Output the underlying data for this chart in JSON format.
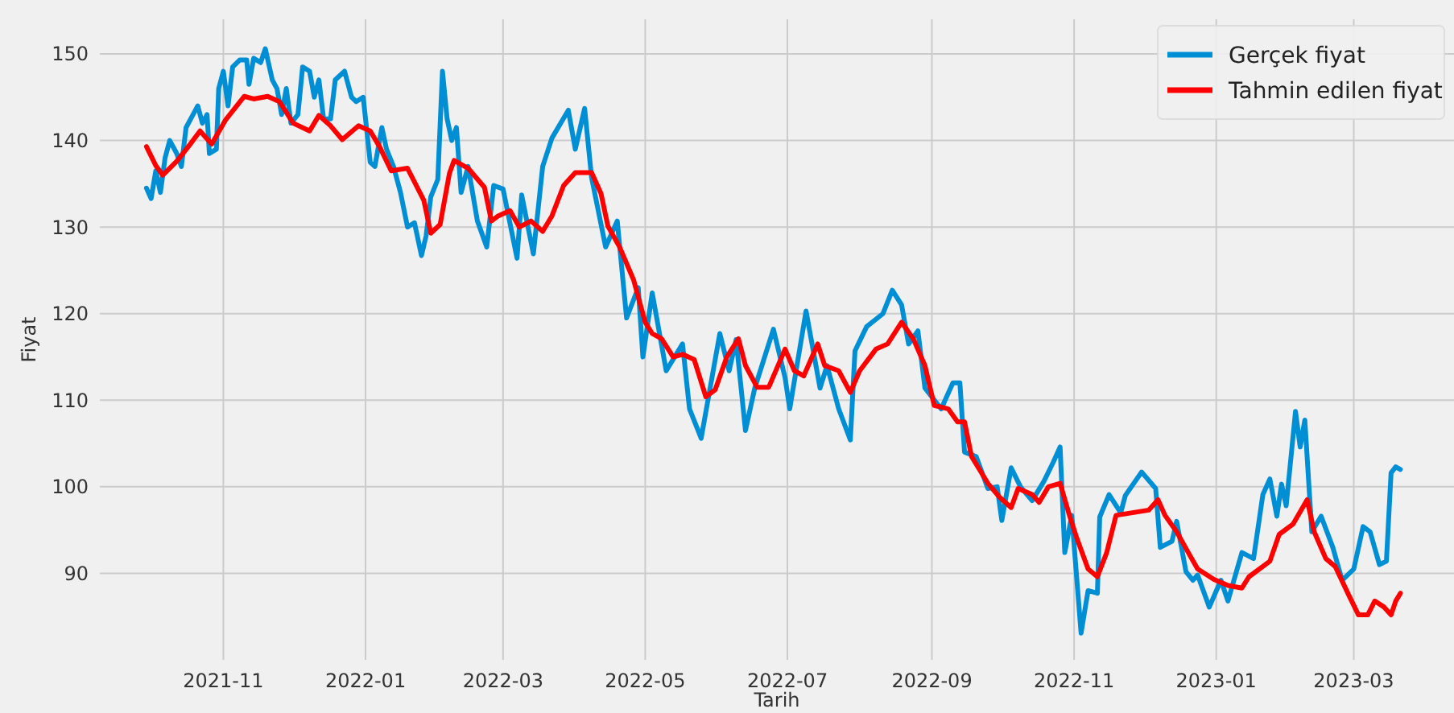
{
  "chart_data": {
    "type": "line",
    "xlabel": "Tarih",
    "ylabel": "Fiyat",
    "legend": "top right",
    "grid": true,
    "xlim": [
      "2021-09-09",
      "2023-04-13"
    ],
    "ylim": [
      80,
      154
    ],
    "xticks": [
      {
        "value": "2021-11-01",
        "label": "2021-11"
      },
      {
        "value": "2022-01-01",
        "label": "2022-01"
      },
      {
        "value": "2022-03-01",
        "label": "2022-03"
      },
      {
        "value": "2022-05-01",
        "label": "2022-05"
      },
      {
        "value": "2022-07-01",
        "label": "2022-07"
      },
      {
        "value": "2022-09-01",
        "label": "2022-09"
      },
      {
        "value": "2022-11-01",
        "label": "2022-11"
      },
      {
        "value": "2023-01-01",
        "label": "2023-01"
      },
      {
        "value": "2023-03-01",
        "label": "2023-03"
      }
    ],
    "yticks": [
      90,
      100,
      110,
      120,
      130,
      140,
      150
    ],
    "series": [
      {
        "name": "Gerçek fiyat",
        "color": "#008fd5",
        "x": [
          "2021-09-29",
          "2021-10-01",
          "2021-10-03",
          "2021-10-05",
          "2021-10-07",
          "2021-10-09",
          "2021-10-12",
          "2021-10-14",
          "2021-10-16",
          "2021-10-19",
          "2021-10-21",
          "2021-10-23",
          "2021-10-25",
          "2021-10-26",
          "2021-10-29",
          "2021-10-30",
          "2021-11-01",
          "2021-11-03",
          "2021-11-05",
          "2021-11-08",
          "2021-11-11",
          "2021-11-12",
          "2021-11-14",
          "2021-11-17",
          "2021-11-19",
          "2021-11-22",
          "2021-11-24",
          "2021-11-26",
          "2021-11-28",
          "2021-11-30",
          "2021-12-03",
          "2021-12-05",
          "2021-12-08",
          "2021-12-10",
          "2021-12-12",
          "2021-12-14",
          "2021-12-17",
          "2021-12-19",
          "2021-12-23",
          "2021-12-26",
          "2021-12-28",
          "2021-12-31",
          "2022-01-03",
          "2022-01-05",
          "2022-01-08",
          "2022-01-10",
          "2022-01-13",
          "2022-01-16",
          "2022-01-19",
          "2022-01-22",
          "2022-01-25",
          "2022-01-27",
          "2022-01-29",
          "2022-02-01",
          "2022-02-03",
          "2022-02-05",
          "2022-02-07",
          "2022-02-09",
          "2022-02-11",
          "2022-02-14",
          "2022-02-18",
          "2022-02-22",
          "2022-02-25",
          "2022-03-01",
          "2022-03-07",
          "2022-03-09",
          "2022-03-14",
          "2022-03-18",
          "2022-03-22",
          "2022-03-29",
          "2022-04-01",
          "2022-04-05",
          "2022-04-08",
          "2022-04-14",
          "2022-04-19",
          "2022-04-23",
          "2022-04-28",
          "2022-04-30",
          "2022-05-04",
          "2022-05-10",
          "2022-05-17",
          "2022-05-20",
          "2022-05-25",
          "2022-06-02",
          "2022-06-06",
          "2022-06-09",
          "2022-06-13",
          "2022-06-17",
          "2022-06-25",
          "2022-06-30",
          "2022-07-02",
          "2022-07-09",
          "2022-07-15",
          "2022-07-18",
          "2022-07-23",
          "2022-07-28",
          "2022-07-30",
          "2022-08-04",
          "2022-08-11",
          "2022-08-15",
          "2022-08-19",
          "2022-08-22",
          "2022-08-26",
          "2022-08-29",
          "2022-09-05",
          "2022-09-10",
          "2022-09-13",
          "2022-09-15",
          "2022-09-20",
          "2022-09-25",
          "2022-09-29",
          "2022-10-01",
          "2022-10-05",
          "2022-10-09",
          "2022-10-14",
          "2022-10-19",
          "2022-10-23",
          "2022-10-26",
          "2022-10-28",
          "2022-10-31",
          "2022-11-04",
          "2022-11-07",
          "2022-11-11",
          "2022-11-12",
          "2022-11-16",
          "2022-11-21",
          "2022-11-23",
          "2022-11-30",
          "2022-12-06",
          "2022-12-08",
          "2022-12-13",
          "2022-12-15",
          "2022-12-19",
          "2022-12-22",
          "2022-12-24",
          "2022-12-29",
          "2023-01-03",
          "2023-01-06",
          "2023-01-12",
          "2023-01-17",
          "2023-01-21",
          "2023-01-24",
          "2023-01-27",
          "2023-01-29",
          "2023-01-31",
          "2023-02-04",
          "2023-02-06",
          "2023-02-08",
          "2023-02-11",
          "2023-02-15",
          "2023-02-20",
          "2023-02-24",
          "2023-03-01",
          "2023-03-05",
          "2023-03-08",
          "2023-03-12",
          "2023-03-15",
          "2023-03-17",
          "2023-03-19",
          "2023-03-21"
        ],
        "values": [
          134.5,
          133.3,
          136.5,
          134,
          138,
          140,
          138.5,
          137,
          141.5,
          143,
          144,
          142,
          143,
          138.5,
          139,
          146,
          148,
          144,
          148.5,
          149.3,
          149.3,
          146.5,
          149.5,
          149,
          150.6,
          147,
          146,
          143,
          146,
          142,
          143,
          148.5,
          148,
          145,
          147,
          142.5,
          142.5,
          147,
          148,
          145,
          144.5,
          145,
          137.5,
          137,
          141.5,
          139,
          137,
          134,
          130,
          130.5,
          126.7,
          129,
          133.5,
          135.5,
          148,
          142.5,
          140,
          141.5,
          134,
          137,
          130.7,
          127.7,
          134.8,
          134.4,
          126.4,
          133.7,
          126.9,
          137,
          140.3,
          143.5,
          139,
          143.7,
          135.7,
          127.7,
          130.7,
          119.5,
          123,
          115,
          122.4,
          113.4,
          116.5,
          109,
          105.6,
          117.7,
          113.4,
          117,
          106.5,
          111.4,
          118.2,
          112.6,
          109,
          120.3,
          111.4,
          114,
          109,
          105.4,
          115.7,
          118.5,
          120,
          122.7,
          121,
          116.5,
          118,
          111.4,
          109,
          112,
          112,
          104,
          103.5,
          99.8,
          100,
          96.1,
          102.2,
          100,
          98.4,
          100.6,
          102.8,
          104.6,
          92.4,
          96.7,
          83.1,
          88,
          87.7,
          96.5,
          99.1,
          97,
          99,
          101.7,
          99.8,
          93,
          93.7,
          96,
          90.2,
          89.2,
          89.8,
          86.1,
          89.2,
          86.8,
          92.4,
          91.7,
          99.1,
          100.9,
          96.6,
          100.3,
          97.8,
          108.7,
          104.6,
          107.7,
          94.8,
          96.6,
          93,
          89.2,
          90.5,
          95.4,
          94.8,
          91,
          91.4,
          101.6,
          102.3,
          102
        ]
      },
      {
        "name": "Tahmin edilen fiyat",
        "color": "#ff0000",
        "x": [
          "2021-09-29",
          "2021-10-03",
          "2021-10-06",
          "2021-10-12",
          "2021-10-17",
          "2021-10-22",
          "2021-10-27",
          "2021-11-02",
          "2021-11-10",
          "2021-11-14",
          "2021-11-20",
          "2021-11-25",
          "2021-12-01",
          "2021-12-08",
          "2021-12-12",
          "2021-12-17",
          "2021-12-22",
          "2021-12-29",
          "2022-01-03",
          "2022-01-07",
          "2022-01-12",
          "2022-01-19",
          "2022-01-26",
          "2022-01-29",
          "2022-02-02",
          "2022-02-06",
          "2022-02-08",
          "2022-02-14",
          "2022-02-21",
          "2022-02-24",
          "2022-02-27",
          "2022-03-04",
          "2022-03-08",
          "2022-03-13",
          "2022-03-18",
          "2022-03-22",
          "2022-03-27",
          "2022-04-01",
          "2022-04-08",
          "2022-04-12",
          "2022-04-15",
          "2022-04-20",
          "2022-04-26",
          "2022-05-01",
          "2022-05-04",
          "2022-05-08",
          "2022-05-13",
          "2022-05-17",
          "2022-05-22",
          "2022-05-27",
          "2022-05-31",
          "2022-06-05",
          "2022-06-10",
          "2022-06-13",
          "2022-06-18",
          "2022-06-23",
          "2022-06-30",
          "2022-07-04",
          "2022-07-08",
          "2022-07-14",
          "2022-07-17",
          "2022-07-23",
          "2022-07-28",
          "2022-08-01",
          "2022-08-08",
          "2022-08-13",
          "2022-08-19",
          "2022-08-24",
          "2022-08-29",
          "2022-09-02",
          "2022-09-08",
          "2022-09-12",
          "2022-09-15",
          "2022-09-18",
          "2022-09-25",
          "2022-09-30",
          "2022-10-05",
          "2022-10-08",
          "2022-10-14",
          "2022-10-17",
          "2022-10-21",
          "2022-10-26",
          "2022-10-30",
          "2022-11-02",
          "2022-11-07",
          "2022-11-11",
          "2022-11-15",
          "2022-11-19",
          "2022-11-26",
          "2022-12-03",
          "2022-12-07",
          "2022-12-10",
          "2022-12-15",
          "2022-12-20",
          "2022-12-24",
          "2022-12-31",
          "2023-01-06",
          "2023-01-12",
          "2023-01-15",
          "2023-01-24",
          "2023-01-28",
          "2023-02-03",
          "2023-02-09",
          "2023-02-12",
          "2023-02-17",
          "2023-02-21",
          "2023-02-27",
          "2023-03-03",
          "2023-03-07",
          "2023-03-10",
          "2023-03-14",
          "2023-03-17",
          "2023-03-19",
          "2023-03-21"
        ],
        "values": [
          139.3,
          137.1,
          136,
          137.6,
          139.3,
          141.1,
          139.6,
          142.4,
          145.1,
          144.8,
          145.1,
          144.5,
          142,
          141.1,
          142.9,
          141.7,
          140.1,
          141.7,
          141.1,
          139.3,
          136.5,
          136.8,
          133.1,
          129.3,
          130.3,
          136.2,
          137.7,
          136.8,
          134.6,
          130.7,
          131.3,
          131.9,
          130,
          130.7,
          129.5,
          131.3,
          134.8,
          136.3,
          136.3,
          133.9,
          130.1,
          127.7,
          123.9,
          119,
          117.7,
          117.1,
          115,
          115.3,
          114.7,
          110.4,
          111.2,
          115,
          117.1,
          114,
          111.5,
          111.5,
          115.9,
          113.4,
          112.8,
          116.5,
          114,
          113.4,
          110.9,
          113.4,
          115.9,
          116.5,
          119,
          117.1,
          114,
          109.4,
          109,
          107.5,
          107.5,
          103.5,
          100.4,
          98.8,
          97.6,
          99.8,
          99.1,
          98.2,
          100,
          100.4,
          96.7,
          94.2,
          90.5,
          89.6,
          92.4,
          96.7,
          97,
          97.3,
          98.5,
          96.7,
          94.8,
          92.4,
          90.5,
          89.3,
          88.6,
          88.3,
          89.6,
          91.4,
          94.5,
          95.7,
          98.5,
          94.8,
          91.7,
          90.8,
          87.4,
          85.2,
          85.2,
          86.8,
          86.1,
          85.2,
          86.8,
          87.7
        ]
      }
    ]
  }
}
